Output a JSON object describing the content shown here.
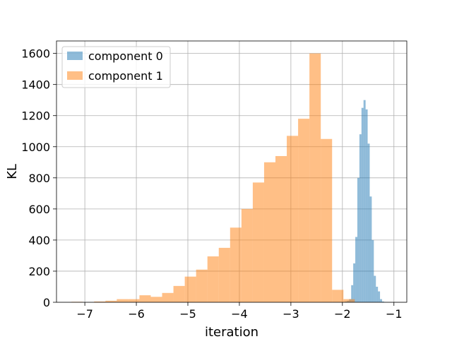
{
  "chart_data": {
    "type": "bar",
    "subtype": "histogram",
    "xlabel": "iteration",
    "ylabel": "KL",
    "xlim": [
      -7.55,
      -0.75
    ],
    "ylim": [
      0,
      1680
    ],
    "grid": true,
    "legend_position": "top-left",
    "x_ticks": [
      -7,
      -6,
      -5,
      -4,
      -3,
      -2,
      -1
    ],
    "x_tick_labels": [
      "−7",
      "−6",
      "−5",
      "−4",
      "−3",
      "−2",
      "−1"
    ],
    "y_ticks": [
      0,
      200,
      400,
      600,
      800,
      1000,
      1200,
      1400,
      1600
    ],
    "y_tick_labels": [
      "0",
      "200",
      "400",
      "600",
      "800",
      "1000",
      "1200",
      "1400",
      "1600"
    ],
    "series": [
      {
        "name": "component 0",
        "color": "#1f77b4",
        "alpha": 0.5,
        "bin_edges": [
          -1.95,
          -1.91,
          -1.87,
          -1.83,
          -1.79,
          -1.75,
          -1.71,
          -1.67,
          -1.63,
          -1.59,
          -1.55,
          -1.51,
          -1.47,
          -1.43,
          -1.39,
          -1.35,
          -1.31,
          -1.27,
          -1.23,
          -1.19,
          -1.15,
          -1.11,
          -1.07,
          -1.03,
          -0.99
        ],
        "counts": [
          5,
          10,
          20,
          110,
          250,
          420,
          800,
          1080,
          1250,
          1300,
          1240,
          1020,
          680,
          400,
          170,
          100,
          70,
          20,
          5,
          2,
          1,
          0,
          0,
          0
        ]
      },
      {
        "name": "component 1",
        "color": "#ff7f0e",
        "alpha": 0.5,
        "bin_edges": [
          -7.26,
          -7.04,
          -6.82,
          -6.6,
          -6.38,
          -6.16,
          -5.94,
          -5.72,
          -5.5,
          -5.28,
          -5.06,
          -4.84,
          -4.62,
          -4.4,
          -4.18,
          -3.96,
          -3.74,
          -3.52,
          -3.3,
          -3.08,
          -2.86,
          -2.64,
          -2.42,
          -2.2,
          -1.98,
          -1.76
        ],
        "counts": [
          3,
          0,
          5,
          10,
          20,
          20,
          45,
          35,
          60,
          105,
          165,
          210,
          295,
          350,
          480,
          600,
          770,
          900,
          940,
          1070,
          1180,
          1600,
          1050,
          80,
          20
        ]
      }
    ]
  }
}
